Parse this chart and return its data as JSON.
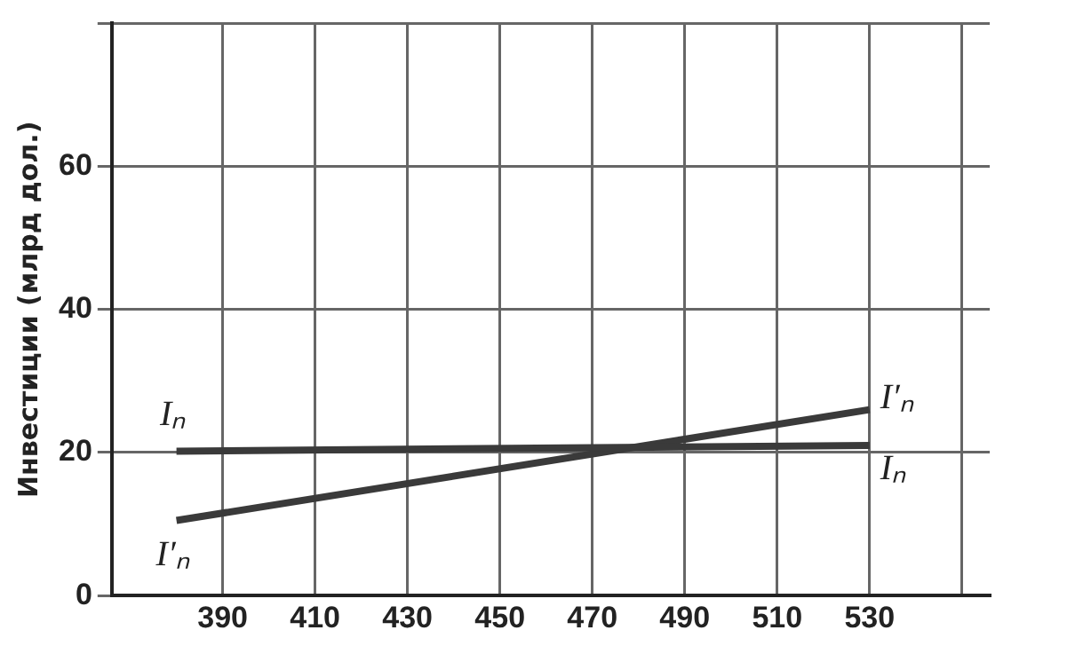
{
  "chart_data": {
    "type": "line",
    "ylabel": "Инвестиции (млрд дол.)",
    "xlim": [
      366,
      556
    ],
    "xticks": [
      390,
      410,
      430,
      450,
      470,
      490,
      510,
      530,
      {
        "value": 550,
        "label": null
      }
    ],
    "ylim": [
      0,
      80
    ],
    "yticks": [
      0,
      20,
      40,
      60,
      {
        "value": 80,
        "label": null
      }
    ],
    "grid": true,
    "legend": false,
    "marker": "none",
    "line_style": "solid",
    "x": [
      380,
      530
    ],
    "series": [
      {
        "name": "Iₙ",
        "color": "#3a3a3a",
        "values": [
          20.2,
          21
        ]
      },
      {
        "name": "I′ₙ",
        "color": "#3a3a3a",
        "values": [
          10.5,
          26
        ]
      }
    ]
  }
}
